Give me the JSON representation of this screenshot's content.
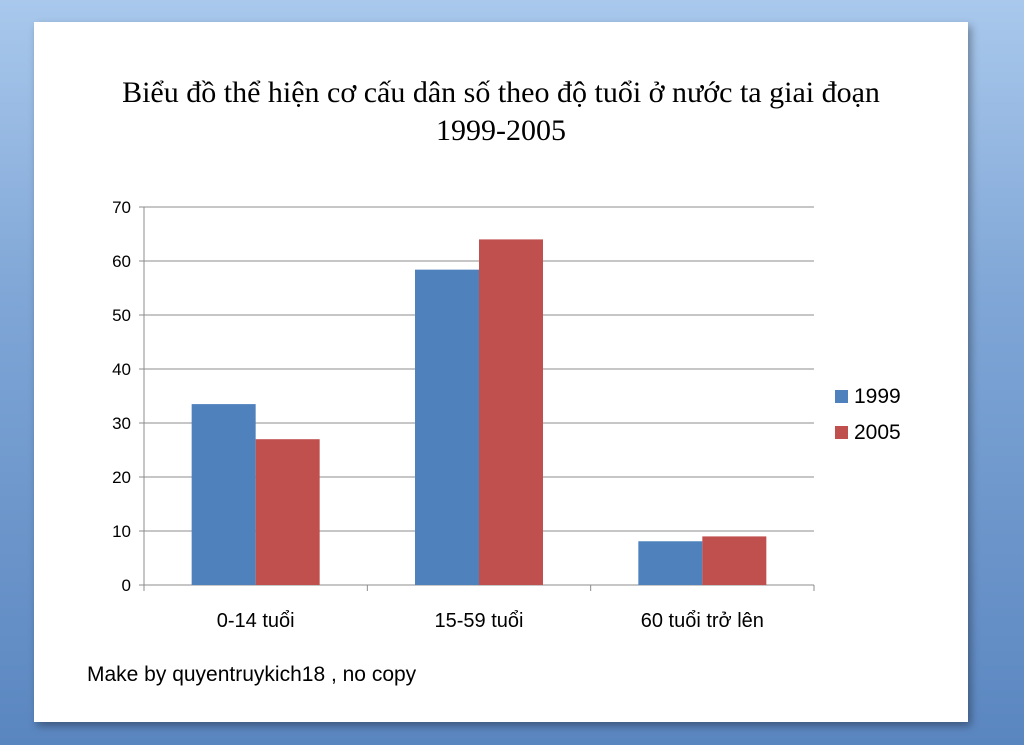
{
  "chart_data": {
    "type": "bar",
    "title_line1": "Biểu đồ thể hiện cơ cấu dân số theo độ tuổi ở nước ta giai đoạn",
    "title_line2": "1999-2005",
    "categories": [
      "0-14 tuổi",
      "15-59 tuổi",
      "60 tuổi trở lên"
    ],
    "series": [
      {
        "name": "1999",
        "values": [
          33.5,
          58.4,
          8.1
        ],
        "color": "#4f81bd"
      },
      {
        "name": "2005",
        "values": [
          27.0,
          64.0,
          9.0
        ],
        "color": "#c0504d"
      }
    ],
    "ylim": [
      0,
      70
    ],
    "yticks": [
      "0",
      "10",
      "20",
      "30",
      "40",
      "50",
      "60",
      "70"
    ],
    "grid": true,
    "legend": "right"
  },
  "footer": "Make by quyentruykich18 , no copy"
}
